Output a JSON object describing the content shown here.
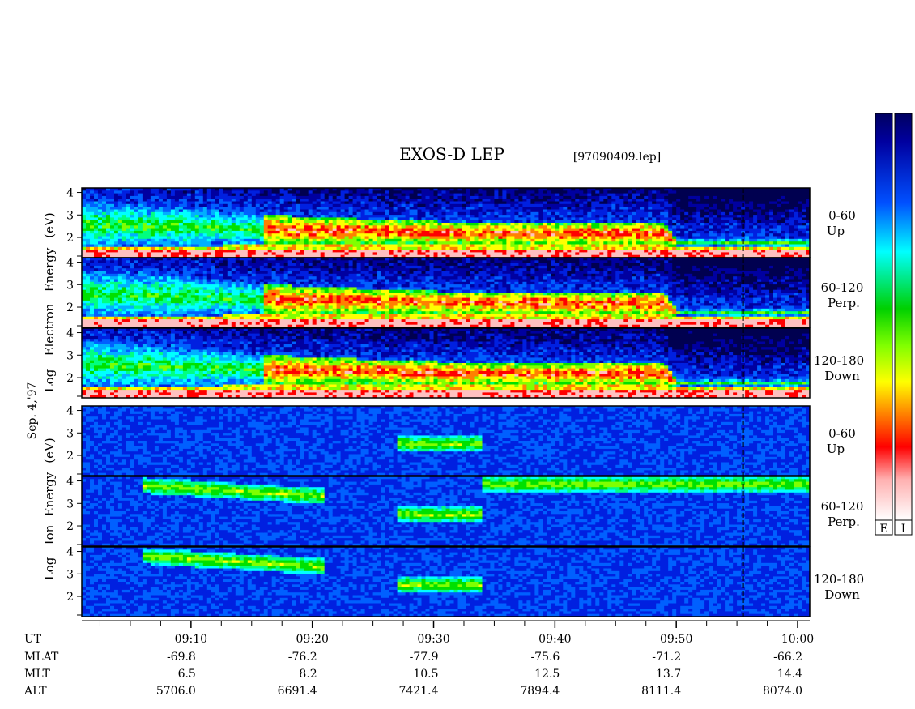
{
  "header": {
    "title": "EXOS-D LEP",
    "file": "[97090409.lep]"
  },
  "date_label": "Sep. 4,'97",
  "colorbar_labels": [
    "E",
    "I"
  ],
  "colors": {
    "background": "#0000a0",
    "palette": [
      "#ffffff",
      "#ff0000",
      "#ff8000",
      "#ffff00",
      "#00ff00",
      "#00ffff",
      "#0060ff",
      "#000080"
    ]
  },
  "groups": [
    {
      "id": "electron",
      "ylabel_lines": [
        "Log",
        "Electron",
        "Energy",
        "(eV)"
      ]
    },
    {
      "id": "ion",
      "ylabel_lines": [
        "Log",
        "Ion",
        "Energy",
        "(eV)"
      ]
    }
  ],
  "panels": [
    {
      "id": "e-0-60",
      "species": "electron",
      "pitch_label": [
        "0-60",
        "Up"
      ]
    },
    {
      "id": "e-60-120",
      "species": "electron",
      "pitch_label": [
        "60-120",
        "Perp."
      ]
    },
    {
      "id": "e-120-180",
      "species": "electron",
      "pitch_label": [
        "120-180",
        "Down"
      ]
    },
    {
      "id": "i-0-60",
      "species": "ion",
      "pitch_label": [
        "0-60",
        "Up"
      ]
    },
    {
      "id": "i-60-120",
      "species": "ion",
      "pitch_label": [
        "60-120",
        "Perp."
      ]
    },
    {
      "id": "i-120-180",
      "species": "ion",
      "pitch_label": [
        "120-180",
        "Down"
      ]
    }
  ],
  "chart_data": {
    "type": "heatmap",
    "title": "EXOS-D LEP",
    "xlabel": "UT",
    "ylabel_electron": "Log Electron Energy (eV)",
    "ylabel_ion": "Log Ion Energy (eV)",
    "y_ticks": [
      2,
      3,
      4
    ],
    "ylim": [
      1.1,
      4.2
    ],
    "x_start_min": 541,
    "x_end_min": 601,
    "x_major_ticks_min": [
      550,
      560,
      570,
      580,
      590,
      600
    ],
    "x_minor_tick_step_min": 2.5,
    "ephemeris": {
      "rows": [
        "UT",
        "MLAT",
        "MLT",
        "ALT"
      ],
      "UT": [
        "09:10",
        "09:20",
        "09:30",
        "09:40",
        "09:50",
        "10:00"
      ],
      "MLAT": [
        "-69.8",
        "-76.2",
        "-77.9",
        "-75.6",
        "-71.2",
        "-66.2"
      ],
      "MLT": [
        "6.5",
        "8.2",
        "10.5",
        "12.5",
        "13.7",
        "14.4"
      ],
      "ALT": [
        "5706.0",
        "6691.4",
        "7421.4",
        "7894.4",
        "8111.4",
        "8074.0"
      ]
    },
    "electron_bands": {
      "lower": [
        [
          541,
          1.55
        ],
        [
          548,
          1.55
        ],
        [
          556,
          1.7
        ],
        [
          565,
          1.75
        ],
        [
          571,
          1.7
        ],
        [
          600,
          1.6
        ]
      ],
      "upper": [
        [
          541,
          3.6
        ],
        [
          548,
          3.4
        ],
        [
          556,
          3.0
        ],
        [
          565,
          2.8
        ],
        [
          571,
          2.7
        ],
        [
          580,
          2.65
        ],
        [
          589,
          2.7
        ],
        [
          590,
          1.9
        ],
        [
          600,
          1.9
        ]
      ]
    },
    "ion_features": [
      {
        "x": [
          546,
          561
        ],
        "y": [
          3.1,
          3.8
        ],
        "panels": [
          "perp",
          "down"
        ]
      },
      {
        "x": [
          567,
          574
        ],
        "y": [
          2.0,
          3.0
        ],
        "panels": [
          "up",
          "perp",
          "down"
        ]
      },
      {
        "x": [
          574,
          601
        ],
        "y": [
          3.7,
          4.0
        ],
        "panels": [
          "perp"
        ]
      }
    ]
  }
}
